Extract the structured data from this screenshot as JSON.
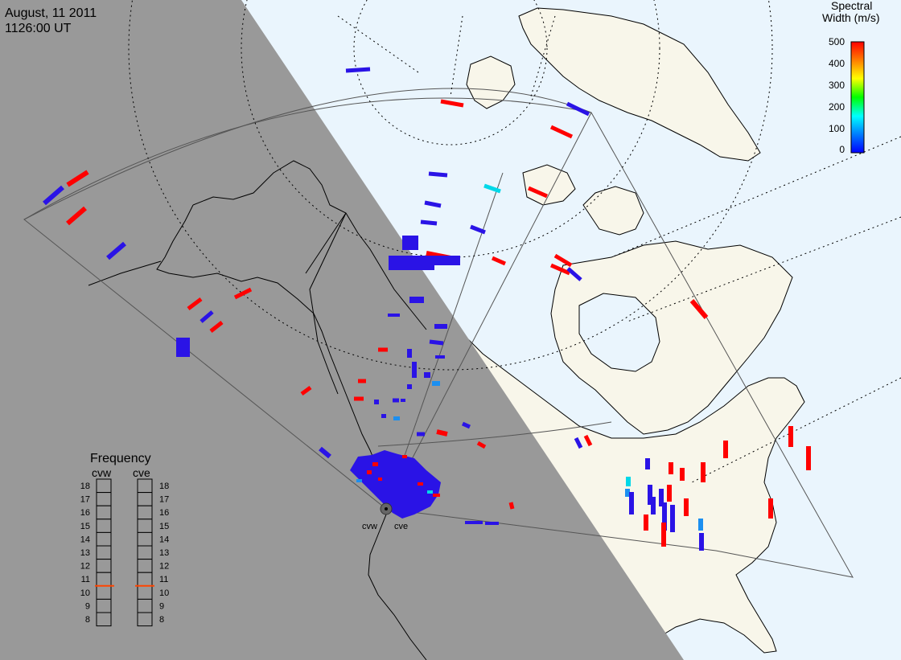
{
  "header": {
    "date": "August, 11 2011",
    "time": "1126:00 UT"
  },
  "colorbar": {
    "title_line1": "Spectral",
    "title_line2": "Width (m/s)",
    "ticks": [
      "500",
      "400",
      "300",
      "200",
      "100",
      "0"
    ],
    "stops": [
      "#ff0000",
      "#ff8000",
      "#ffff00",
      "#00ff00",
      "#00ffff",
      "#0080ff",
      "#0000ff"
    ]
  },
  "frequency_panel": {
    "title": "Frequency",
    "radar_left": "cvw",
    "radar_right": "cve",
    "scale": [
      "18",
      "17",
      "16",
      "15",
      "14",
      "13",
      "12",
      "11",
      "10",
      "9",
      "8"
    ],
    "cvw_mhz": 10.5,
    "cve_mhz": 10.5
  },
  "radars": {
    "left_label": "cvw",
    "right_label": "cve"
  },
  "colors": {
    "night": "#999999",
    "day_ocean": "#eaf5fd",
    "day_land": "#f8f6ea",
    "coast": "#000000",
    "high_width": "#ff0000",
    "low_width": "#2a13e6",
    "mid_cyan": "#00d8e8",
    "mid_blue": "#1c8ff0",
    "frequency_marker": "#ff4400"
  }
}
